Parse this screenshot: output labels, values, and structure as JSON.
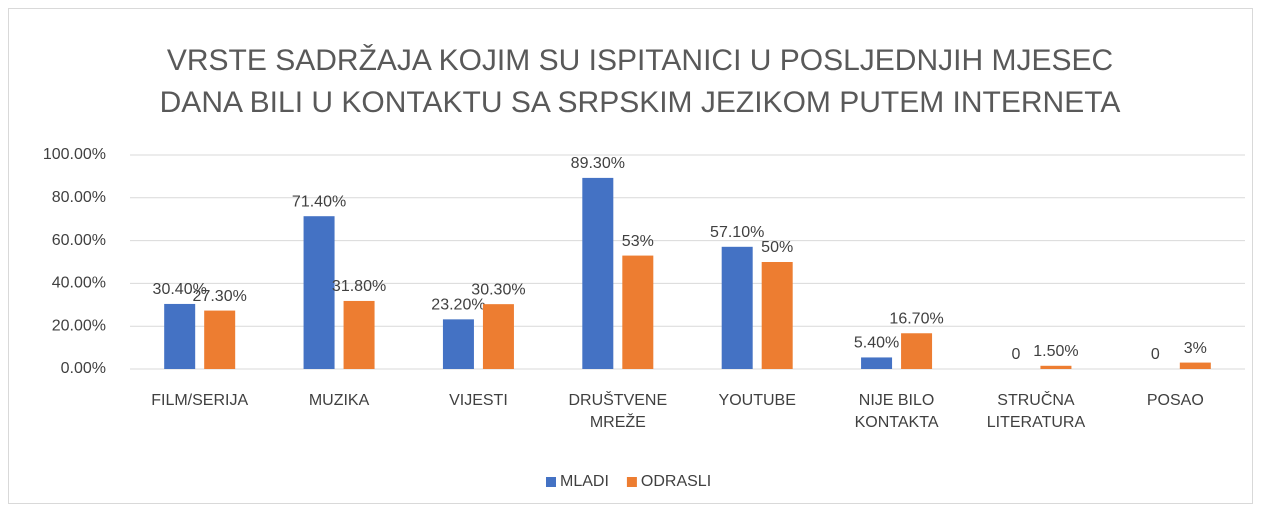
{
  "chart_data": {
    "type": "bar",
    "title": [
      "VRSTE SADRŽAJA KOJIM SU ISPITANICI U POSLJEDNJIH MJESEC",
      "DANA BILI U KONTAKTU SA SRPSKIM JEZIKOM PUTEM INTERNETA"
    ],
    "categories": [
      "FILM/SERIJA",
      "MUZIKA",
      "VIJESTI",
      "DRUŠTVENE MREŽE",
      "YOUTUBE",
      "NIJE BILO KONTAKTA",
      "STRUČNA LITERATURA",
      "POSAO"
    ],
    "series": [
      {
        "name": "MLADI",
        "color": "#4472c4",
        "values": [
          30.4,
          71.4,
          23.2,
          89.3,
          57.1,
          5.4,
          0,
          0
        ],
        "value_labels": [
          "30.40%",
          "71.40%",
          "23.20%",
          "89.30%",
          "57.10%",
          "5.40%",
          "0",
          "0"
        ]
      },
      {
        "name": "ODRASLI",
        "color": "#ed7d31",
        "values": [
          27.3,
          31.8,
          30.3,
          53,
          50,
          16.7,
          1.5,
          3
        ],
        "value_labels": [
          "27.30%",
          "31.80%",
          "30.30%",
          "53%",
          "50%",
          "16.70%",
          "1.50%",
          "3%"
        ]
      }
    ],
    "ylim": [
      0,
      100
    ],
    "yticks": [
      {
        "value": 0,
        "label": "0.00%"
      },
      {
        "value": 20,
        "label": "20.00%"
      },
      {
        "value": 40,
        "label": "40.00%"
      },
      {
        "value": 60,
        "label": "60.00%"
      },
      {
        "value": 80,
        "label": "80.00%"
      },
      {
        "value": 100,
        "label": "100.00%"
      }
    ],
    "grid": true,
    "legend": "bottom"
  }
}
